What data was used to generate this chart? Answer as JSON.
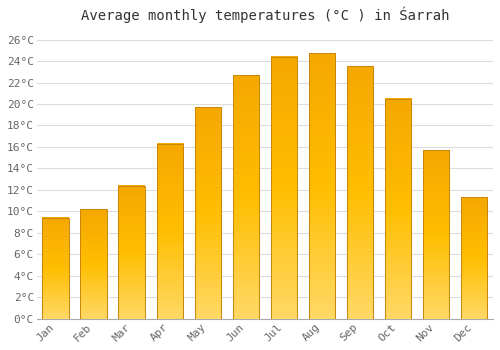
{
  "title": "Average monthly temperatures (°C ) in Śarrah",
  "months": [
    "Jan",
    "Feb",
    "Mar",
    "Apr",
    "May",
    "Jun",
    "Jul",
    "Aug",
    "Sep",
    "Oct",
    "Nov",
    "Dec"
  ],
  "values": [
    9.4,
    10.2,
    12.4,
    16.3,
    19.7,
    22.7,
    24.4,
    24.7,
    23.5,
    20.5,
    15.7,
    11.3
  ],
  "bar_color_top": "#F5A800",
  "bar_color_mid": "#FFBE00",
  "bar_color_bottom": "#FFD966",
  "bar_edge_color": "#C8850A",
  "background_color": "#FFFFFF",
  "grid_color": "#DDDDDD",
  "text_color": "#666666",
  "ylim": [
    0,
    27
  ],
  "yticks": [
    0,
    2,
    4,
    6,
    8,
    10,
    12,
    14,
    16,
    18,
    20,
    22,
    24,
    26
  ],
  "ytick_labels": [
    "0°C",
    "2°C",
    "4°C",
    "6°C",
    "8°C",
    "10°C",
    "12°C",
    "14°C",
    "16°C",
    "18°C",
    "20°C",
    "22°C",
    "24°C",
    "26°C"
  ],
  "title_fontsize": 10,
  "tick_fontsize": 8,
  "font_family": "monospace"
}
